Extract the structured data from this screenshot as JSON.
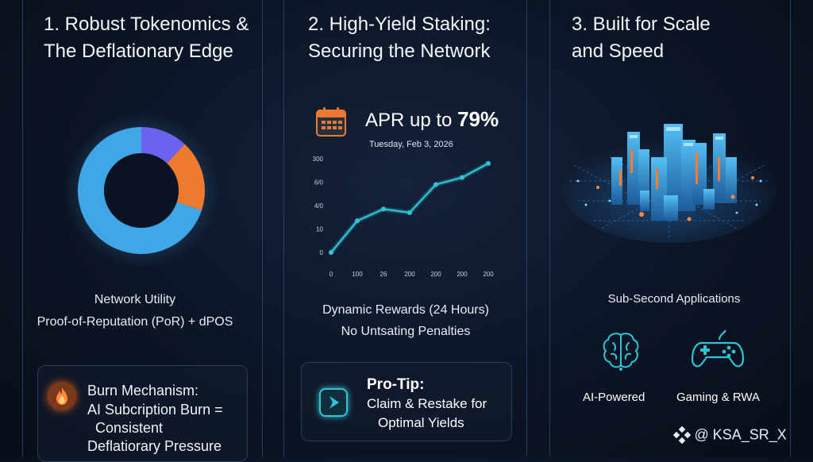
{
  "columns": [
    {
      "title_line1": "1. Robust Tokenomics &",
      "title_line2": "The Deflationary Edge",
      "utility_label": "Network Utility",
      "utility_detail": "Proof-of-Reputation (PoR) + dPOS",
      "burn": {
        "icon": "flame-icon",
        "title": "Burn Mechanism:",
        "line1": "AI Subcription Burn =",
        "line2": "Consistent",
        "line3": "Deflatiorary Pressure"
      }
    },
    {
      "title_line1": "2. High-Yield Staking:",
      "title_line2": "Securing the Network",
      "apr_label": "APR up to",
      "apr_value": "79%",
      "date": "Tuesday, Feb 3, 2026",
      "rewards_line1": "Dynamic Rewards (24 Hours)",
      "rewards_line2": "No Untsating Penalties",
      "protip": {
        "icon": "play-icon",
        "title": "Pro-Tip:",
        "line1": "Claim & Restake for",
        "line2": "Optimal Yields"
      }
    },
    {
      "title_line1": "3. Built for Scale",
      "title_line2": "and Speed",
      "apps_label": "Sub-Second Applications",
      "feature1_label": "AI-Powered",
      "feature1_icon": "brain-icon",
      "feature2_label": "Gaming & RWA",
      "feature2_icon": "gamepad-icon"
    }
  ],
  "watermark": "@ KSA_SR_X",
  "colors": {
    "accent_cyan": "#2fc3d6",
    "donut_purple": "#6b63f0",
    "donut_orange": "#ef7a2f",
    "donut_blue": "#3fa7e6"
  },
  "chart_data": [
    {
      "type": "pie",
      "variant": "donut",
      "values": [
        70,
        12,
        18
      ],
      "colors": [
        "#3fa7e6",
        "#6b63f0",
        "#ef7a2f"
      ]
    },
    {
      "type": "line",
      "x_tick_labels": [
        "0",
        "100",
        "26",
        "200",
        "200",
        "200",
        "200"
      ],
      "y_tick_labels": [
        "0",
        "10",
        "4/0",
        "6/0",
        "300"
      ],
      "x": [
        0,
        1,
        2,
        3,
        4,
        5,
        6
      ],
      "values": [
        0,
        1.35,
        1.85,
        1.7,
        2.9,
        3.2,
        3.8
      ],
      "ylim": [
        0,
        4
      ],
      "grid": false
    }
  ]
}
